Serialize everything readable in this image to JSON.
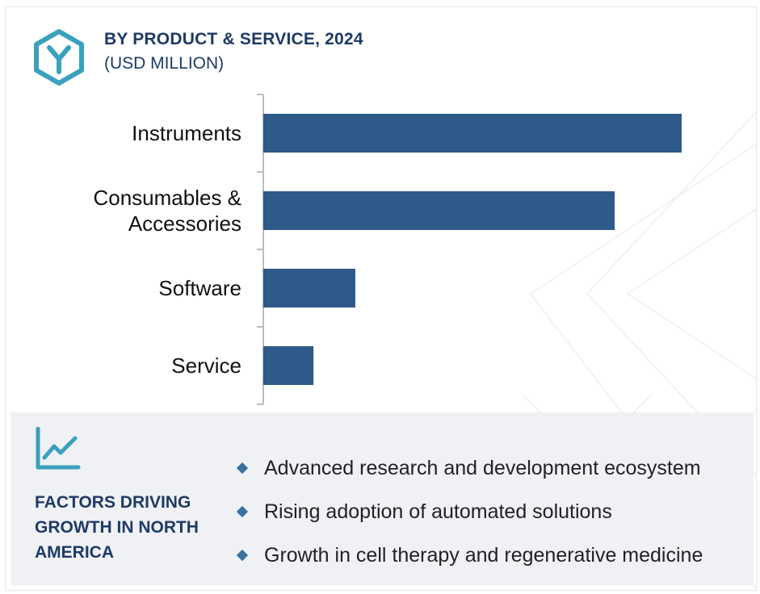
{
  "header": {
    "title": "BY PRODUCT & SERVICE, 2024",
    "subtitle": "(USD MILLION)",
    "logo_icon": "hexagon-y-logo-icon"
  },
  "chart_data": {
    "type": "bar",
    "orientation": "horizontal",
    "categories": [
      [
        "Instruments"
      ],
      [
        "Consumables &",
        "Accessories"
      ],
      [
        "Software"
      ],
      [
        "Service"
      ]
    ],
    "values": [
      100,
      84,
      22,
      12
    ],
    "xlim": [
      0,
      100
    ],
    "bar_color": "#2e5a8a",
    "grid": false
  },
  "factors": {
    "icon": "line-chart-trend-icon",
    "title": "FACTORS DRIVING GROWTH IN NORTH AMERICA",
    "items": [
      "Advanced research and development ecosystem",
      "Rising adoption of automated solutions",
      "Growth in cell therapy and regenerative medicine"
    ]
  },
  "colors": {
    "brand_teal": "#3aa1bd",
    "title_navy": "#1e3a66",
    "bar": "#2e5a8a",
    "panel_bg": "#eff1f5",
    "bullet": "#3a6fa0"
  }
}
